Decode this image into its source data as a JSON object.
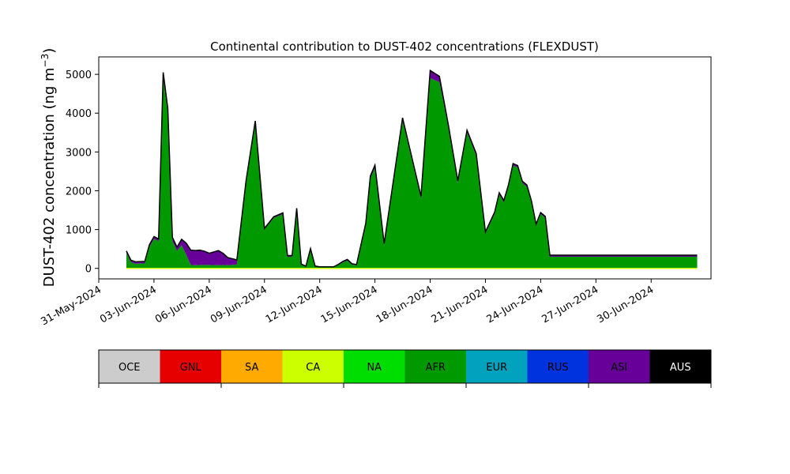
{
  "chart_data": {
    "type": "area",
    "title": "Continental contribution to DUST-402 concentrations (FLEXDUST)",
    "ylabel": "DUST-402 concentration (ng m",
    "ylabel_sup": "−3",
    "ylabel_close": ")",
    "xlabel": "",
    "ylim": [
      -270,
      5450
    ],
    "xlim": [
      "2024-05-31T00:00",
      "2024-07-03T06:00"
    ],
    "yticks": [
      0,
      1000,
      2000,
      3000,
      4000,
      5000
    ],
    "xtick_labels": [
      "31-May-2024",
      "03-Jun-2024",
      "06-Jun-2024",
      "09-Jun-2024",
      "12-Jun-2024",
      "15-Jun-2024",
      "18-Jun-2024",
      "21-Jun-2024",
      "24-Jun-2024",
      "27-Jun-2024",
      "30-Jun-2024"
    ],
    "xticks": [
      "2024-05-31",
      "2024-06-03",
      "2024-06-06",
      "2024-06-09",
      "2024-06-12",
      "2024-06-15",
      "2024-06-18",
      "2024-06-21",
      "2024-06-24",
      "2024-06-27",
      "2024-06-30"
    ],
    "grid": false,
    "x": [
      "2024-06-01T12:00",
      "2024-06-01T18:00",
      "2024-06-02T00:00",
      "2024-06-02T12:00",
      "2024-06-02T18:00",
      "2024-06-03T00:00",
      "2024-06-03T06:00",
      "2024-06-03T12:00",
      "2024-06-03T18:00",
      "2024-06-04T00:00",
      "2024-06-04T06:00",
      "2024-06-04T12:00",
      "2024-06-04T18:00",
      "2024-06-05T00:00",
      "2024-06-05T06:00",
      "2024-06-05T12:00",
      "2024-06-05T18:00",
      "2024-06-06T00:00",
      "2024-06-06T12:00",
      "2024-06-06T18:00",
      "2024-06-07T00:00",
      "2024-06-07T12:00",
      "2024-06-08T00:00",
      "2024-06-08T12:00",
      "2024-06-09T00:00",
      "2024-06-09T12:00",
      "2024-06-10T00:00",
      "2024-06-10T06:00",
      "2024-06-10T12:00",
      "2024-06-10T18:00",
      "2024-06-11T00:00",
      "2024-06-11T06:00",
      "2024-06-11T12:00",
      "2024-06-11T18:00",
      "2024-06-12T00:00",
      "2024-06-12T12:00",
      "2024-06-12T18:00",
      "2024-06-13T00:00",
      "2024-06-13T06:00",
      "2024-06-13T12:00",
      "2024-06-13T18:00",
      "2024-06-14T00:00",
      "2024-06-14T12:00",
      "2024-06-14T18:00",
      "2024-06-15T00:00",
      "2024-06-15T12:00",
      "2024-06-16T12:00",
      "2024-06-17T12:00",
      "2024-06-18T00:00",
      "2024-06-18T12:00",
      "2024-06-19T00:00",
      "2024-06-19T12:00",
      "2024-06-20T00:00",
      "2024-06-20T12:00",
      "2024-06-21T00:00",
      "2024-06-21T12:00",
      "2024-06-21T18:00",
      "2024-06-22T00:00",
      "2024-06-22T06:00",
      "2024-06-22T12:00",
      "2024-06-22T18:00",
      "2024-06-23T00:00",
      "2024-06-23T06:00",
      "2024-06-23T12:00",
      "2024-06-23T18:00",
      "2024-06-24T00:00",
      "2024-06-24T06:00",
      "2024-06-24T12:00",
      "2024-06-24T18:00",
      "2024-06-25T00:00",
      "2024-06-25T06:00",
      "2024-06-25T12:00",
      "2024-06-25T18:00",
      "2024-06-26T00:00",
      "2024-06-26T06:00",
      "2024-06-26T12:00",
      "2024-06-26T18:00",
      "2024-06-27T00:00",
      "2024-06-27T12:00",
      "2024-06-28T00:00",
      "2024-06-28T12:00",
      "2024-06-29T00:00",
      "2024-06-29T12:00",
      "2024-06-30T00:00",
      "2024-06-30T12:00",
      "2024-07-01T00:00",
      "2024-07-01T06:00",
      "2024-07-01T12:00",
      "2024-07-01T18:00",
      "2024-07-02T00:00",
      "2024-07-02T06:00",
      "2024-07-02T12:00"
    ],
    "series": [
      {
        "name": "AFR",
        "color": "#009900",
        "values": [
          400,
          160,
          120,
          130,
          550,
          760,
          700,
          4900,
          4000,
          700,
          450,
          600,
          350,
          90,
          80,
          90,
          90,
          90,
          80,
          90,
          80,
          100,
          2200,
          3700,
          1000,
          1300,
          1400,
          300,
          300,
          1500,
          100,
          50,
          500,
          50,
          30,
          30,
          30,
          80,
          150,
          200,
          100,
          80,
          1100,
          2300,
          2600,
          600,
          3800,
          1800,
          4900,
          4800,
          3600,
          2200,
          3500,
          2900,
          900,
          1400,
          1900,
          1700,
          2100,
          2650,
          2600,
          2200,
          2100,
          1700,
          1100,
          1400,
          1300,
          300,
          300,
          300,
          300,
          300,
          300,
          300,
          300,
          300,
          300,
          300,
          300,
          300,
          300,
          300,
          300,
          300,
          300,
          300,
          300,
          300,
          300,
          300,
          300,
          300
        ]
      },
      {
        "name": "ASI",
        "color": "#660099",
        "values": [
          50,
          50,
          50,
          50,
          60,
          60,
          60,
          150,
          120,
          100,
          100,
          150,
          300,
          380,
          380,
          380,
          350,
          300,
          380,
          300,
          200,
          120,
          60,
          100,
          30,
          30,
          30,
          30,
          30,
          50,
          10,
          10,
          10,
          10,
          10,
          10,
          10,
          20,
          30,
          30,
          20,
          20,
          60,
          80,
          60,
          40,
          80,
          60,
          200,
          150,
          60,
          60,
          60,
          60,
          40,
          50,
          50,
          50,
          50,
          50,
          50,
          50,
          50,
          40,
          40,
          40,
          40,
          40,
          40,
          40,
          40,
          40,
          40,
          40,
          40,
          40,
          40,
          40,
          40,
          40,
          40,
          40,
          40,
          40,
          40,
          40,
          40,
          40,
          40,
          40,
          40,
          40
        ]
      }
    ]
  },
  "legend": {
    "items": [
      {
        "label": "OCE",
        "color": "#cccccc",
        "text_color": "#000000"
      },
      {
        "label": "GNL",
        "color": "#e60000",
        "text_color": "#000000"
      },
      {
        "label": "SA",
        "color": "#ffaa00",
        "text_color": "#000000"
      },
      {
        "label": "CA",
        "color": "#ccff00",
        "text_color": "#000000"
      },
      {
        "label": "NA",
        "color": "#00dd00",
        "text_color": "#000000"
      },
      {
        "label": "AFR",
        "color": "#009900",
        "text_color": "#000000"
      },
      {
        "label": "EUR",
        "color": "#00a2bd",
        "text_color": "#000000"
      },
      {
        "label": "RUS",
        "color": "#0033dd",
        "text_color": "#000000"
      },
      {
        "label": "ASI",
        "color": "#660099",
        "text_color": "#000000"
      },
      {
        "label": "AUS",
        "color": "#000000",
        "text_color": "#ffffff"
      }
    ]
  }
}
